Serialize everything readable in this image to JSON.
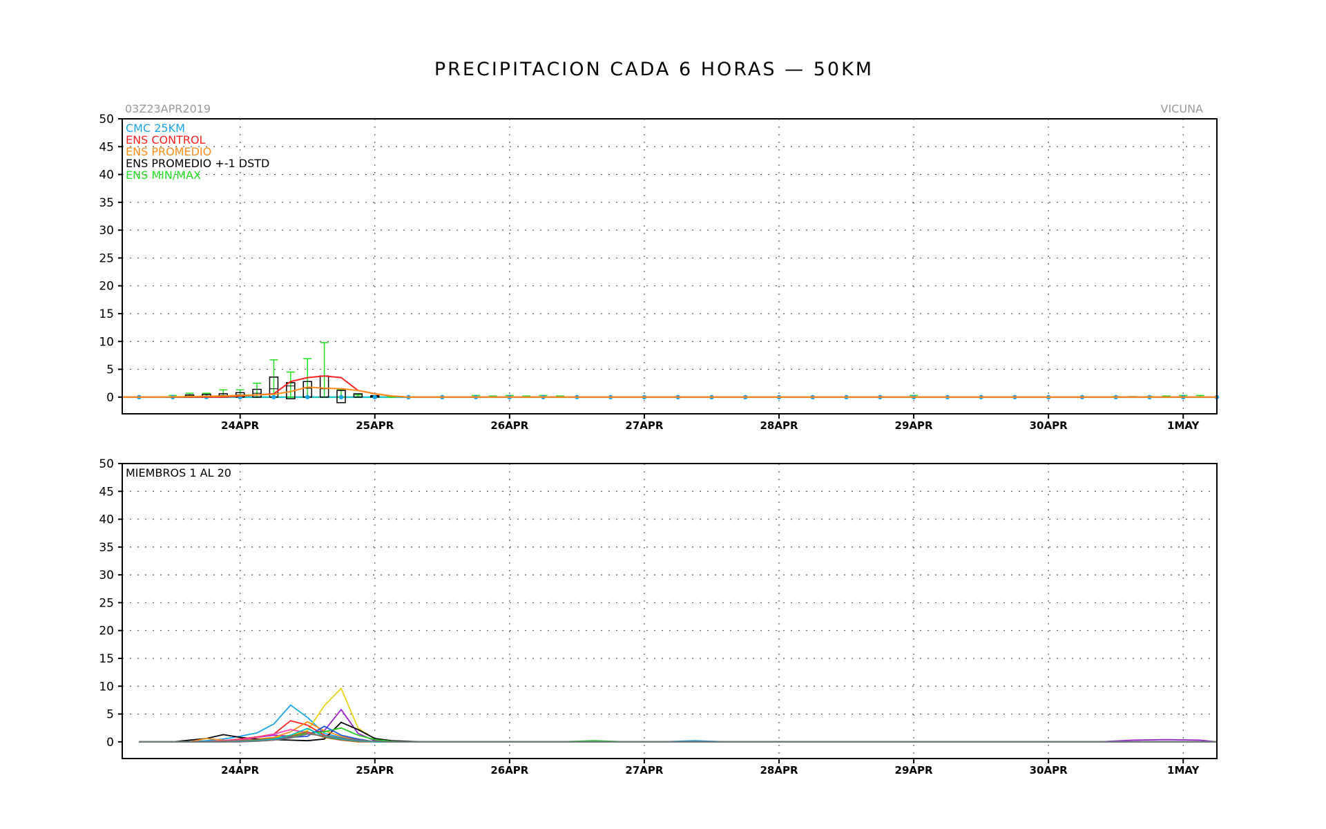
{
  "title": "PRECIPITACION CADA 6 HORAS — 50KM",
  "run_label": "03Z23APR2019",
  "station": "VICUNA",
  "colors": {
    "cmc": "#1aa3e6",
    "control": "#ff2222",
    "promedio": "#ff8c1a",
    "dstd": "#000000",
    "minmax": "#22dd22",
    "zero_line": "#22c4c4"
  },
  "chart_data": [
    {
      "type": "line",
      "panel": "top",
      "ylim": [
        -3,
        50
      ],
      "yticks": [
        0,
        5,
        10,
        15,
        20,
        25,
        30,
        35,
        40,
        45,
        50
      ],
      "xlim_hours": [
        0,
        195
      ],
      "x_tick_labels": [
        "24APR",
        "25APR",
        "26APR",
        "27APR",
        "28APR",
        "29APR",
        "30APR",
        "1MAY"
      ],
      "grid": true,
      "legend_position": "top-left",
      "legend": [
        {
          "label": "CMC 25KM",
          "color_key": "cmc"
        },
        {
          "label": "ENS CONTROL",
          "color_key": "control"
        },
        {
          "label": "ENS PROMEDIO",
          "color_key": "promedio"
        },
        {
          "label": "ENS PROMEDIO +-1 DSTD",
          "color_key": "dstd"
        },
        {
          "label": "ENS MIN/MAX",
          "color_key": "minmax"
        }
      ],
      "series": [
        {
          "name": "CMC 25KM",
          "x_hours": [
            3,
            9,
            15,
            21,
            27,
            33,
            39,
            45,
            51,
            57,
            63,
            69,
            75,
            81,
            87,
            93,
            99,
            105,
            111,
            117,
            123,
            129,
            135,
            141,
            147,
            153,
            159,
            165,
            171,
            177,
            183,
            189,
            195
          ],
          "values": [
            0,
            0,
            0,
            0,
            0,
            0,
            0,
            0,
            0,
            0,
            0,
            0,
            0,
            0,
            0,
            0,
            0,
            0,
            0,
            0,
            0,
            0,
            0,
            0,
            0,
            0,
            0,
            0,
            0,
            0,
            0,
            0,
            0
          ]
        },
        {
          "name": "ENS CONTROL",
          "x_hours": [
            0,
            6,
            12,
            18,
            21,
            24,
            27,
            30,
            33,
            36,
            39,
            42,
            45,
            48,
            51,
            54,
            60,
            66,
            72,
            78,
            84,
            90,
            96,
            102,
            108,
            114,
            120,
            126,
            132,
            138,
            144,
            150,
            156,
            162,
            168,
            174,
            180,
            186,
            192,
            195
          ],
          "values": [
            0,
            0,
            0,
            0,
            0.2,
            0.4,
            0.6,
            2.8,
            3.5,
            3.8,
            3.5,
            1.2,
            0.6,
            0.2,
            0,
            0,
            0,
            0,
            0,
            0,
            0,
            0,
            0,
            0,
            0,
            0,
            0,
            0,
            0,
            0,
            0,
            0,
            0,
            0,
            0,
            0,
            0,
            0,
            0,
            0
          ]
        },
        {
          "name": "ENS PROMEDIO",
          "x_hours": [
            0,
            6,
            12,
            18,
            21,
            24,
            27,
            30,
            33,
            36,
            39,
            42,
            45,
            48,
            51,
            54,
            60,
            66,
            72,
            78,
            84,
            90,
            96,
            102,
            108,
            114,
            120,
            126,
            132,
            138,
            144,
            150,
            156,
            162,
            168,
            174,
            180,
            186,
            192,
            195
          ],
          "values": [
            0,
            0,
            0.1,
            0.2,
            0.3,
            0.4,
            0.5,
            1.0,
            1.8,
            1.6,
            1.5,
            1.2,
            0.6,
            0.2,
            0,
            0,
            0,
            0,
            0,
            0,
            0,
            0,
            0,
            0,
            0,
            0,
            0,
            0,
            0,
            0,
            0,
            0,
            0,
            0,
            0,
            0,
            0,
            0,
            0,
            0
          ]
        }
      ],
      "boxes": {
        "x_hours": [
          12,
          15,
          18,
          21,
          24,
          27,
          30,
          33,
          36,
          39,
          42,
          45
        ],
        "mean": [
          0.2,
          0.2,
          0.3,
          0.4,
          0.7,
          1.5,
          2.0,
          1.6,
          1.5,
          1.5,
          0.6,
          0.3
        ],
        "minus_std": [
          0,
          0,
          0,
          0,
          0,
          0,
          -0.3,
          0,
          0,
          -1.0,
          0,
          0
        ],
        "plus_std": [
          0.4,
          0.5,
          0.6,
          0.8,
          1.4,
          3.6,
          2.6,
          2.8,
          3.8,
          1.2,
          0.6,
          0.2
        ]
      },
      "minmax": {
        "x_hours": [
          9,
          12,
          15,
          18,
          21,
          24,
          27,
          30,
          33,
          36,
          39,
          42,
          45,
          48,
          63,
          66,
          69,
          72,
          75,
          78,
          141,
          177,
          180,
          183,
          186,
          189,
          192
        ],
        "min": [
          0,
          0,
          0,
          0,
          0,
          0,
          0,
          0,
          0,
          0,
          0,
          0,
          0,
          0,
          0,
          0,
          0,
          0,
          0,
          0,
          0,
          0,
          0,
          0,
          0,
          0,
          0
        ],
        "max": [
          0.3,
          0.7,
          0.7,
          1.3,
          1.3,
          2.5,
          6.7,
          4.5,
          6.9,
          9.8,
          1.4,
          0.4,
          0.2,
          0.1,
          0.3,
          0.2,
          0.3,
          0.2,
          0.3,
          0.2,
          0.3,
          0.1,
          0.1,
          0.1,
          0.2,
          0.3,
          0.3
        ]
      }
    },
    {
      "type": "line",
      "panel": "bottom",
      "ylim": [
        -3,
        50
      ],
      "yticks": [
        0,
        5,
        10,
        15,
        20,
        25,
        30,
        35,
        40,
        45,
        50
      ],
      "xlim_hours": [
        0,
        195
      ],
      "x_tick_labels": [
        "24APR",
        "25APR",
        "26APR",
        "27APR",
        "28APR",
        "29APR",
        "30APR",
        "1MAY"
      ],
      "grid": true,
      "annotation": "MIEMBROS 1 AL 20",
      "x_hours": [
        3,
        6,
        9,
        12,
        15,
        18,
        21,
        24,
        27,
        30,
        33,
        36,
        39,
        42,
        45,
        48,
        51,
        54,
        57,
        60,
        66,
        72,
        78,
        84,
        90,
        96,
        102,
        108,
        114,
        120,
        126,
        132,
        138,
        144,
        150,
        156,
        162,
        168,
        174,
        180,
        186,
        192,
        195
      ],
      "series": [
        {
          "color": "#1aa3e6",
          "values": [
            0,
            0,
            0,
            0,
            0.2,
            0.5,
            1.0,
            1.6,
            3.2,
            6.6,
            4.4,
            1.5,
            0.8,
            0.3,
            0,
            0,
            0,
            0,
            0,
            0,
            0,
            0,
            0,
            0,
            0,
            0,
            0.2,
            0,
            0,
            0,
            0,
            0,
            0,
            0,
            0,
            0,
            0,
            0,
            0,
            0,
            0,
            0,
            0
          ]
        },
        {
          "color": "#e8d21a",
          "values": [
            0,
            0,
            0,
            0,
            0,
            0,
            0.2,
            0.5,
            0.8,
            1.2,
            2.0,
            6.5,
            9.6,
            2.5,
            0.5,
            0,
            0,
            0,
            0,
            0,
            0,
            0,
            0,
            0,
            0,
            0,
            0,
            0,
            0,
            0,
            0,
            0,
            0,
            0,
            0,
            0,
            0,
            0,
            0,
            0,
            0,
            0,
            0
          ]
        },
        {
          "color": "#9922cc",
          "values": [
            0,
            0,
            0,
            0,
            0,
            0,
            0.3,
            0.8,
            1.2,
            1.0,
            1.5,
            2.0,
            5.8,
            1.5,
            0.2,
            0,
            0,
            0,
            0,
            0,
            0,
            0,
            0,
            0,
            0,
            0,
            0,
            0,
            0,
            0,
            0,
            0,
            0,
            0,
            0,
            0,
            0,
            0,
            0,
            0.3,
            0.4,
            0.3,
            0
          ]
        },
        {
          "color": "#000000",
          "values": [
            0,
            0,
            0,
            0.3,
            0.6,
            1.3,
            0.8,
            0.5,
            0.4,
            0.3,
            0.2,
            0.5,
            3.5,
            2.2,
            0.6,
            0.2,
            0.1,
            0,
            0,
            0,
            0,
            0,
            0,
            0,
            0,
            0,
            0,
            0,
            0,
            0,
            0,
            0,
            0,
            0,
            0,
            0,
            0,
            0,
            0,
            0,
            0,
            0,
            0
          ]
        },
        {
          "color": "#ff2222",
          "values": [
            0,
            0,
            0,
            0,
            0,
            0.2,
            0.5,
            0.9,
            1.4,
            3.8,
            3.0,
            1.2,
            0.6,
            0.2,
            0,
            0,
            0,
            0,
            0,
            0,
            0,
            0,
            0,
            0,
            0,
            0,
            0,
            0,
            0,
            0,
            0,
            0,
            0,
            0,
            0,
            0,
            0,
            0,
            0,
            0,
            0,
            0,
            0
          ]
        },
        {
          "color": "#ff8c1a",
          "values": [
            0,
            0,
            0,
            0,
            0.6,
            0.3,
            0.2,
            0.4,
            0.8,
            1.8,
            3.6,
            2.0,
            1.0,
            0.3,
            0,
            0,
            0,
            0,
            0,
            0,
            0,
            0,
            0,
            0,
            0,
            0,
            0,
            0,
            0,
            0,
            0,
            0,
            0,
            0,
            0,
            0,
            0,
            0,
            0,
            0,
            0,
            0,
            0
          ]
        },
        {
          "color": "#22cc22",
          "values": [
            0,
            0,
            0,
            0,
            0,
            0,
            0.1,
            0.3,
            0.6,
            1.0,
            1.5,
            1.8,
            2.5,
            1.2,
            0.4,
            0.1,
            0,
            0,
            0,
            0,
            0,
            0,
            0,
            0.2,
            0,
            0,
            0,
            0,
            0,
            0,
            0,
            0,
            0,
            0,
            0,
            0,
            0,
            0,
            0,
            0,
            0,
            0,
            0
          ]
        },
        {
          "color": "#ff44aa",
          "values": [
            0,
            0,
            0,
            0,
            0,
            0.2,
            0.4,
            0.8,
            1.4,
            2.2,
            1.6,
            0.9,
            0.4,
            0.1,
            0,
            0,
            0,
            0,
            0,
            0,
            0,
            0,
            0,
            0,
            0,
            0,
            0,
            0,
            0,
            0,
            0,
            0,
            0,
            0,
            0,
            0,
            0,
            0,
            0,
            0,
            0,
            0,
            0
          ]
        },
        {
          "color": "#2255dd",
          "values": [
            0,
            0,
            0,
            0,
            0,
            0,
            0,
            0.2,
            0.5,
            0.8,
            1.0,
            2.8,
            1.2,
            0.5,
            0,
            0,
            0,
            0,
            0,
            0,
            0,
            0,
            0,
            0,
            0,
            0,
            0,
            0,
            0,
            0,
            0,
            0,
            0,
            0,
            0,
            0,
            0,
            0,
            0,
            0,
            0,
            0,
            0
          ]
        },
        {
          "color": "#aa6633",
          "values": [
            0,
            0,
            0,
            0,
            0,
            0.1,
            0.2,
            0.4,
            0.6,
            1.0,
            1.8,
            0.8,
            0.3,
            0,
            0,
            0,
            0,
            0,
            0,
            0,
            0,
            0,
            0,
            0,
            0,
            0,
            0,
            0,
            0,
            0,
            0,
            0,
            0,
            0,
            0,
            0,
            0,
            0,
            0,
            0,
            0,
            0,
            0
          ]
        },
        {
          "color": "#00bbbb",
          "values": [
            0,
            0,
            0,
            0,
            0,
            0,
            0.1,
            0.2,
            0.5,
            1.2,
            2.4,
            1.0,
            0.5,
            0.2,
            0,
            0,
            0,
            0,
            0,
            0,
            0,
            0,
            0,
            0,
            0,
            0,
            0,
            0,
            0,
            0,
            0,
            0,
            0,
            0,
            0,
            0,
            0,
            0,
            0,
            0,
            0,
            0,
            0
          ]
        },
        {
          "color": "#777777",
          "values": [
            0,
            0,
            0,
            0,
            0,
            0,
            0,
            0.1,
            0.3,
            0.7,
            1.4,
            1.1,
            0.7,
            0.3,
            0.1,
            0,
            0,
            0,
            0,
            0,
            0,
            0,
            0,
            0,
            0,
            0,
            0,
            0,
            0,
            0,
            0,
            0,
            0,
            0,
            0,
            0,
            0,
            0,
            0,
            0,
            0,
            0,
            0
          ]
        }
      ]
    }
  ]
}
